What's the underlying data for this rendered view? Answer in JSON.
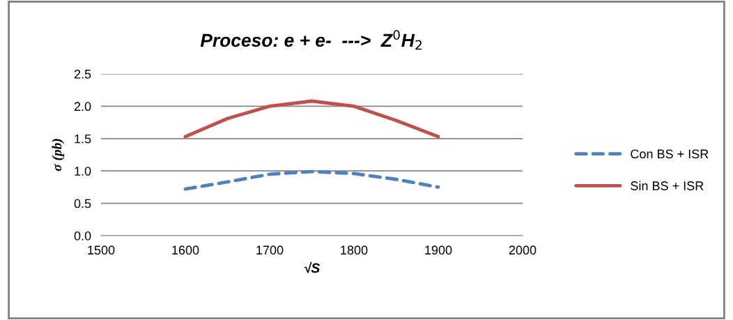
{
  "chart_data": {
    "type": "line",
    "title": "Proceso: e + e-  --->  Z$^{0}$H$_{2}$",
    "xlabel": "√S",
    "ylabel": "σ (pb)",
    "x": [
      1600,
      1650,
      1700,
      1750,
      1800,
      1850,
      1900
    ],
    "series": [
      {
        "name": "Con BS + ISR",
        "color": "#4f81bd",
        "line_style": "dashed",
        "values": [
          0.72,
          0.83,
          0.95,
          0.99,
          0.96,
          0.87,
          0.75
        ]
      },
      {
        "name": "Sin BS + ISR",
        "color": "#c0504d",
        "line_style": "solid",
        "values": [
          1.53,
          1.81,
          2.0,
          2.08,
          2.0,
          1.78,
          1.53
        ]
      }
    ],
    "xlim": [
      1500,
      2000
    ],
    "xticks": [
      1500,
      1600,
      1700,
      1800,
      1900,
      2000
    ],
    "ylim": [
      0,
      2.5
    ],
    "yticks": [
      {
        "value": 0,
        "label": "0.0"
      },
      {
        "value": 0.5,
        "label": "0.5"
      },
      {
        "value": 1,
        "label": "1.0"
      },
      {
        "value": 1.5,
        "label": "1.5"
      },
      {
        "value": 2,
        "label": "2.0"
      },
      {
        "value": 2.5,
        "label": "2.5"
      }
    ],
    "grid": "y",
    "legend": "right",
    "marker": "none"
  }
}
